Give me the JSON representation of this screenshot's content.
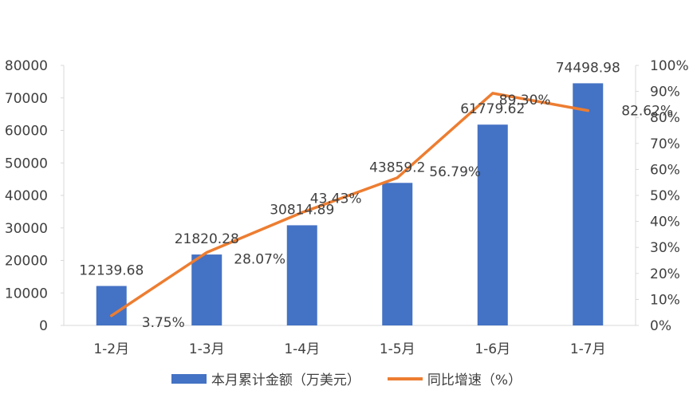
{
  "chart_data": {
    "type": "bar",
    "categories": [
      "1-2月",
      "1-3月",
      "1-4月",
      "1-5月",
      "1-6月",
      "1-7月"
    ],
    "series": [
      {
        "name": "本月累计金额（万美元）",
        "type": "bar",
        "axis": "left",
        "color": "#4472C4",
        "values": [
          12139.68,
          21820.28,
          30814.89,
          43859.2,
          61779.62,
          74498.98
        ],
        "labels": [
          "12139.68",
          "21820.28",
          "30814.89",
          "43859.2",
          "61779.62",
          "74498.98"
        ]
      },
      {
        "name": "同比增速（%）",
        "type": "line",
        "axis": "right",
        "color": "#ED7D31",
        "values": [
          3.75,
          28.07,
          43.43,
          56.79,
          89.3,
          82.62
        ],
        "labels": [
          "3.75%",
          "28.07%",
          "43.43%",
          "56.79%",
          "89.30%",
          "82.62%"
        ]
      }
    ],
    "left_axis": {
      "ylim": [
        0,
        80000
      ],
      "ticks": [
        "0",
        "10000",
        "20000",
        "30000",
        "40000",
        "50000",
        "60000",
        "70000",
        "80000"
      ]
    },
    "right_axis": {
      "ylim": [
        0,
        100
      ],
      "ticks": [
        "0%",
        "10%",
        "20%",
        "30%",
        "40%",
        "50%",
        "60%",
        "70%",
        "80%",
        "90%",
        "100%"
      ]
    },
    "grid": false,
    "legend_position": "bottom"
  }
}
